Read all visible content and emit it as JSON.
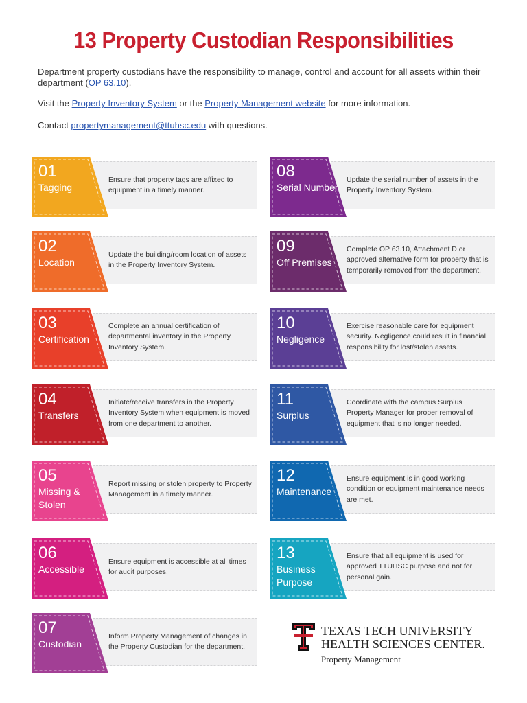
{
  "title": "13 Property Custodian Responsibilities",
  "intro": {
    "p1_text": "Department property custodians have the responsibility to manage, control and account for all assets within their department (",
    "p1_link": "OP 63.10",
    "p1_end": ").",
    "p2_pre": "Visit the ",
    "p2_link1": "Property Inventory System",
    "p2_mid": " or the ",
    "p2_link2": "Property Management website",
    "p2_end": " for more information.",
    "p3_pre": "Contact ",
    "p3_link": "propertymanagement@ttuhsc.edu",
    "p3_end": " with questions."
  },
  "items": [
    {
      "num": "01",
      "label": "Tagging",
      "color": "#f2a71f",
      "desc": "Ensure that property tags are affixed to equipment in a timely manner."
    },
    {
      "num": "02",
      "label": "Location",
      "color": "#ef6c2a",
      "desc": "Update the building/room location of assets in the Property Inventory System."
    },
    {
      "num": "03",
      "label": "Certification",
      "color": "#e8402a",
      "desc": "Complete an annual certification of departmental inventory in the Property Inventory System."
    },
    {
      "num": "04",
      "label": "Transfers",
      "color": "#c0202a",
      "desc": "Initiate/receive transfers in the Property Inventory System when equipment is moved from one department to another."
    },
    {
      "num": "05",
      "label": "Missing & Stolen",
      "color": "#e8448e",
      "desc": "Report missing or stolen property to Property Management in a timely manner."
    },
    {
      "num": "06",
      "label": "Accessible",
      "color": "#d41f80",
      "desc": "Ensure equipment is accessible at all times for audit purposes."
    },
    {
      "num": "07",
      "label": "Custodian",
      "color": "#a23f95",
      "desc": "Inform Property Management of changes in the Property Custodian for the department."
    },
    {
      "num": "08",
      "label": "Serial Number",
      "color": "#7d2a8e",
      "desc": "Update the serial number of assets in the Property Inventory System."
    },
    {
      "num": "09",
      "label": "Off Premises",
      "color": "#6c2c6b",
      "desc": "Complete OP 63.10, Attachment D or approved alternative form for property that is temporarily removed from the department."
    },
    {
      "num": "10",
      "label": "Negligence",
      "color": "#5b3f95",
      "desc": "Exercise reasonable care for equipment security. Negligence could result in financial responsibility for lost/stolen assets."
    },
    {
      "num": "11",
      "label": "Surplus",
      "color": "#2f58a4",
      "desc": "Coordinate with the campus Surplus Property Manager for proper removal of equipment that is no longer needed."
    },
    {
      "num": "12",
      "label": "Maintenance",
      "color": "#1068b0",
      "desc": "Ensure equipment is in good working condition or equipment maintenance needs are met."
    },
    {
      "num": "13",
      "label": "Business Purpose",
      "color": "#16a5c1",
      "desc": "Ensure that all equipment is used for approved TTUHSC purpose and not for personal gain."
    }
  ],
  "footer": {
    "org_line1": "TEXAS TECH UNIVERSITY",
    "org_line2": "HEALTH SCIENCES CENTER.",
    "dept": "Property Management",
    "logo_color": "#c8202f"
  }
}
